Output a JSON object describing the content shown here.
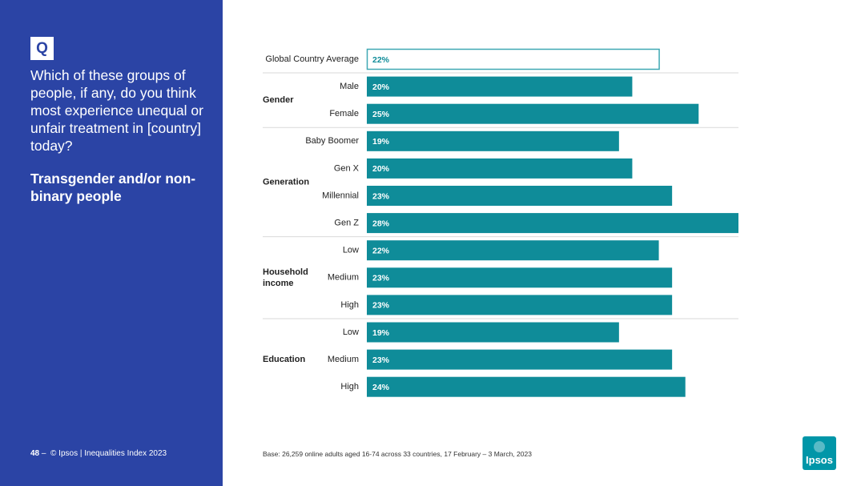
{
  "sidebar": {
    "q_label": "Q",
    "question": "Which of these groups of people, if any, do you think most experience unequal or unfair treatment in [country] today?",
    "subject": "Transgender and/or non-binary people",
    "footer_page": "48",
    "footer_dash": "–",
    "footer_text": "© Ipsos | Inequalities Index 2023"
  },
  "base_note": "Base: 26,259 online adults aged 16-74 across 33 countries, 17 February – 3 March, 2023",
  "logo_text": "Ipsos",
  "colors": {
    "sidebar": "#2B44A5",
    "bar": "#0F8C99",
    "global_bar_border": "#3FA8B3",
    "logo": "#0096A8",
    "divider": "#D9D9D9"
  },
  "chart_data": {
    "type": "bar",
    "orientation": "horizontal",
    "xlim": [
      0,
      28
    ],
    "average": {
      "label": "Global Country Average",
      "value": 22,
      "value_label": "22%"
    },
    "groups": [
      {
        "name": "Gender",
        "items": [
          {
            "label": "Male",
            "value": 20,
            "value_label": "20%"
          },
          {
            "label": "Female",
            "value": 25,
            "value_label": "25%"
          }
        ]
      },
      {
        "name": "Generation",
        "items": [
          {
            "label": "Baby Boomer",
            "value": 19,
            "value_label": "19%"
          },
          {
            "label": "Gen X",
            "value": 20,
            "value_label": "20%"
          },
          {
            "label": "Millennial",
            "value": 23,
            "value_label": "23%"
          },
          {
            "label": "Gen Z",
            "value": 28,
            "value_label": "28%"
          }
        ]
      },
      {
        "name": "Household income",
        "items": [
          {
            "label": "Low",
            "value": 22,
            "value_label": "22%"
          },
          {
            "label": "Medium",
            "value": 23,
            "value_label": "23%"
          },
          {
            "label": "High",
            "value": 23,
            "value_label": "23%"
          }
        ]
      },
      {
        "name": "Education",
        "items": [
          {
            "label": "Low",
            "value": 19,
            "value_label": "19%"
          },
          {
            "label": "Medium",
            "value": 23,
            "value_label": "23%"
          },
          {
            "label": "High",
            "value": 24,
            "value_label": "24%"
          }
        ]
      }
    ]
  }
}
